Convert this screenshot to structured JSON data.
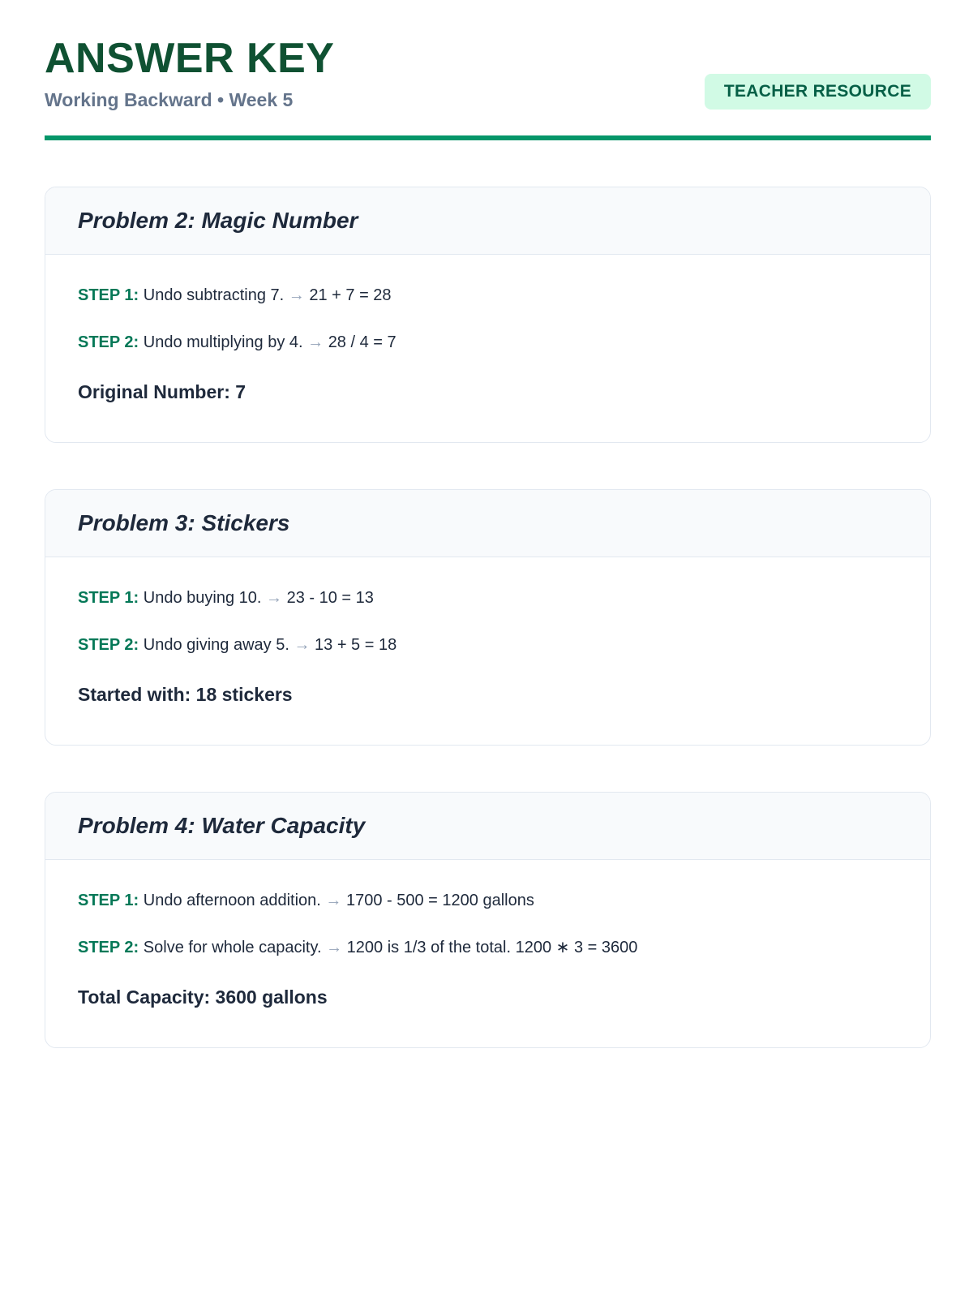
{
  "header": {
    "title": "ANSWER KEY",
    "subtitle": "Working Backward • Week 5",
    "badge": "TEACHER RESOURCE"
  },
  "colors": {
    "title_green": "#0f5132",
    "accent_green": "#059669",
    "step_label_green": "#047857",
    "badge_bg": "#d1fae5",
    "badge_text": "#065f46",
    "body_text": "#1e293b",
    "subtitle_gray": "#64748b",
    "arrow_gray": "#94a3b8",
    "card_border": "#e2e8f0",
    "card_header_bg": "#f8fafc"
  },
  "problems": [
    {
      "title": "Problem 2: Magic Number",
      "steps": [
        {
          "label": "STEP 1:",
          "action": "Undo subtracting 7.",
          "arrow": "→",
          "calc": "21 + 7 = 28"
        },
        {
          "label": "STEP 2:",
          "action": "Undo multiplying by 4.",
          "arrow": "→",
          "calc": "28 / 4 = 7"
        }
      ],
      "answer": "Original Number: 7"
    },
    {
      "title": "Problem 3: Stickers",
      "steps": [
        {
          "label": "STEP 1:",
          "action": "Undo buying 10.",
          "arrow": "→",
          "calc": "23 - 10 = 13"
        },
        {
          "label": "STEP 2:",
          "action": "Undo giving away 5.",
          "arrow": "→",
          "calc": "13 + 5 = 18"
        }
      ],
      "answer": "Started with: 18 stickers"
    },
    {
      "title": "Problem 4: Water Capacity",
      "steps": [
        {
          "label": "STEP 1:",
          "action": "Undo afternoon addition.",
          "arrow": "→",
          "calc": "1700 - 500 = 1200 gallons"
        },
        {
          "label": "STEP 2:",
          "action": "Solve for whole capacity.",
          "arrow": "→",
          "calc": "1200 is 1/3 of the total. 1200 ∗ 3 = 3600"
        }
      ],
      "answer": "Total Capacity: 3600 gallons"
    }
  ]
}
